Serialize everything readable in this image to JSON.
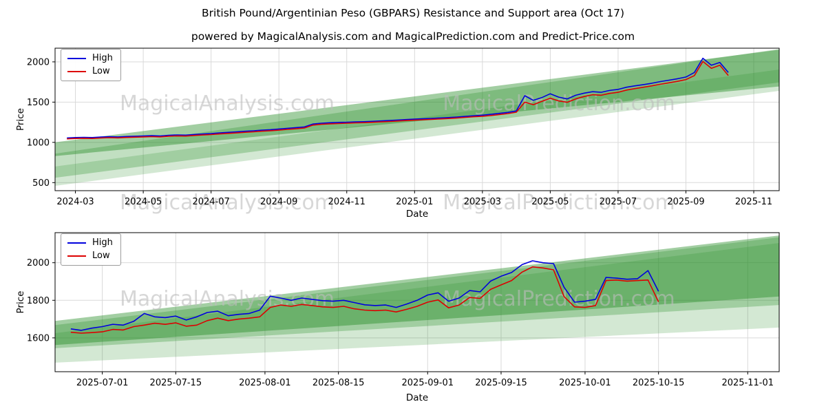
{
  "page": {
    "title": "British Pound/Argentinian Peso (GBPARS) Resistance and Support area (Oct 17)",
    "subtitle": "powered by MagicalAnalysis.com and MagicalPrediction.com and Predict-Price.com"
  },
  "colors": {
    "high": "#0000dd",
    "low": "#dd0000",
    "band": "#228b22",
    "grid": "#d9d9d9",
    "watermark": "#bdbdbd",
    "axis": "#000000",
    "plot_bg": "#ffffff"
  },
  "watermarks": {
    "left": "MagicalAnalysis.com",
    "right": "MagicalPrediction.com"
  },
  "legend": {
    "high": "High",
    "low": "Low"
  },
  "chart_data": [
    {
      "type": "line",
      "title": "",
      "xlabel": "Date",
      "ylabel": "Price",
      "xlim": [
        1.4,
        22.75
      ],
      "ylim": [
        400,
        2170
      ],
      "grid": true,
      "legend_position": "upper-left",
      "x_ticks": [
        {
          "x": 2,
          "label": "2024-03"
        },
        {
          "x": 4,
          "label": "2024-05"
        },
        {
          "x": 6,
          "label": "2024-07"
        },
        {
          "x": 8,
          "label": "2024-09"
        },
        {
          "x": 10,
          "label": "2024-11"
        },
        {
          "x": 12,
          "label": "2025-01"
        },
        {
          "x": 14,
          "label": "2025-03"
        },
        {
          "x": 16,
          "label": "2025-05"
        },
        {
          "x": 18,
          "label": "2025-07"
        },
        {
          "x": 20,
          "label": "2025-09"
        },
        {
          "x": 22,
          "label": "2025-11"
        }
      ],
      "y_ticks": [
        500,
        1000,
        1500,
        2000
      ],
      "x": [
        1.75,
        2,
        2.25,
        2.5,
        2.75,
        3,
        3.25,
        3.5,
        3.75,
        4,
        4.25,
        4.5,
        4.75,
        5,
        5.25,
        5.5,
        5.75,
        6,
        6.25,
        6.5,
        6.75,
        7,
        7.25,
        7.5,
        7.75,
        8,
        8.25,
        8.5,
        8.75,
        9,
        9.25,
        9.5,
        9.75,
        10,
        10.25,
        10.5,
        10.75,
        11,
        11.25,
        11.5,
        11.75,
        12,
        12.25,
        12.5,
        12.75,
        13,
        13.25,
        13.5,
        13.75,
        14,
        14.25,
        14.5,
        14.75,
        15,
        15.25,
        15.5,
        15.75,
        16,
        16.25,
        16.5,
        16.75,
        17,
        17.25,
        17.5,
        17.75,
        18,
        18.25,
        18.5,
        18.75,
        19,
        19.25,
        19.5,
        19.75,
        20,
        20.25,
        20.5,
        20.75,
        21,
        21.25
      ],
      "series": [
        {
          "name": "High",
          "color": "#0000dd",
          "values": [
            1055,
            1060,
            1063,
            1060,
            1066,
            1070,
            1068,
            1073,
            1076,
            1080,
            1083,
            1080,
            1088,
            1093,
            1090,
            1098,
            1104,
            1110,
            1118,
            1124,
            1130,
            1138,
            1144,
            1152,
            1158,
            1166,
            1175,
            1183,
            1192,
            1228,
            1238,
            1244,
            1248,
            1250,
            1254,
            1257,
            1261,
            1266,
            1271,
            1277,
            1283,
            1288,
            1293,
            1298,
            1303,
            1308,
            1315,
            1323,
            1330,
            1338,
            1348,
            1360,
            1372,
            1390,
            1580,
            1522,
            1556,
            1604,
            1562,
            1540,
            1585,
            1612,
            1630,
            1622,
            1645,
            1658,
            1685,
            1702,
            1718,
            1735,
            1755,
            1772,
            1790,
            1812,
            1868,
            2045,
            1958,
            1992,
            1868
          ]
        },
        {
          "name": "Low",
          "color": "#dd0000",
          "values": [
            1043,
            1048,
            1051,
            1048,
            1054,
            1058,
            1056,
            1061,
            1064,
            1068,
            1071,
            1068,
            1076,
            1081,
            1078,
            1086,
            1092,
            1097,
            1105,
            1111,
            1117,
            1125,
            1131,
            1139,
            1145,
            1152,
            1161,
            1169,
            1178,
            1214,
            1224,
            1230,
            1234,
            1238,
            1242,
            1245,
            1249,
            1254,
            1259,
            1265,
            1271,
            1276,
            1281,
            1286,
            1291,
            1296,
            1303,
            1311,
            1318,
            1324,
            1334,
            1346,
            1358,
            1375,
            1500,
            1468,
            1510,
            1548,
            1515,
            1498,
            1540,
            1570,
            1592,
            1585,
            1608,
            1622,
            1650,
            1668,
            1685,
            1702,
            1722,
            1740,
            1758,
            1780,
            1830,
            2005,
            1920,
            1958,
            1830
          ]
        }
      ],
      "bands": [
        {
          "bottom": [
            460,
            1640
          ],
          "top": [
            700,
            1905
          ],
          "alpha": 0.2
        },
        {
          "bottom": [
            560,
            1745
          ],
          "top": [
            860,
            2160
          ],
          "alpha": 0.28
        },
        {
          "bottom": [
            830,
            1695
          ],
          "top": [
            1000,
            2150
          ],
          "alpha": 0.42
        }
      ]
    },
    {
      "type": "line",
      "title": "",
      "xlabel": "Date",
      "ylabel": "Price",
      "xlim": [
        -2,
        136
      ],
      "ylim": [
        1420,
        2160
      ],
      "grid": true,
      "legend_position": "upper-left",
      "x_ticks": [
        {
          "x": 7,
          "label": "2025-07-01"
        },
        {
          "x": 21,
          "label": "2025-07-15"
        },
        {
          "x": 38,
          "label": "2025-08-01"
        },
        {
          "x": 52,
          "label": "2025-08-15"
        },
        {
          "x": 69,
          "label": "2025-09-01"
        },
        {
          "x": 83,
          "label": "2025-09-15"
        },
        {
          "x": 99,
          "label": "2025-10-01"
        },
        {
          "x": 113,
          "label": "2025-10-15"
        },
        {
          "x": 130,
          "label": "2025-11-01"
        }
      ],
      "y_ticks": [
        1600,
        1800,
        2000
      ],
      "x": [
        1,
        3,
        5,
        7,
        9,
        11,
        13,
        15,
        17,
        19,
        21,
        23,
        25,
        27,
        29,
        31,
        33,
        35,
        37,
        39,
        41,
        43,
        45,
        47,
        49,
        51,
        53,
        55,
        57,
        59,
        61,
        63,
        65,
        67,
        69,
        71,
        73,
        75,
        77,
        79,
        81,
        83,
        85,
        87,
        89,
        91,
        93,
        95,
        97,
        99,
        101,
        103,
        105,
        107,
        109,
        111,
        113
      ],
      "series": [
        {
          "name": "High",
          "color": "#0000dd",
          "values": [
            1648,
            1640,
            1652,
            1660,
            1672,
            1668,
            1688,
            1730,
            1712,
            1708,
            1716,
            1695,
            1712,
            1735,
            1742,
            1718,
            1725,
            1730,
            1748,
            1822,
            1812,
            1800,
            1812,
            1805,
            1798,
            1795,
            1800,
            1788,
            1776,
            1772,
            1775,
            1762,
            1780,
            1800,
            1828,
            1840,
            1795,
            1812,
            1852,
            1845,
            1902,
            1928,
            1948,
            1990,
            2010,
            2000,
            1995,
            1870,
            1790,
            1795,
            1805,
            1922,
            1918,
            1912,
            1915,
            1958,
            1848
          ]
        },
        {
          "name": "Low",
          "color": "#dd0000",
          "values": [
            1630,
            1625,
            1628,
            1632,
            1645,
            1642,
            1660,
            1668,
            1678,
            1672,
            1680,
            1662,
            1668,
            1692,
            1705,
            1692,
            1700,
            1705,
            1712,
            1762,
            1775,
            1768,
            1778,
            1772,
            1765,
            1762,
            1768,
            1755,
            1748,
            1745,
            1748,
            1738,
            1752,
            1768,
            1790,
            1802,
            1760,
            1775,
            1815,
            1810,
            1858,
            1882,
            1905,
            1950,
            1978,
            1972,
            1962,
            1820,
            1765,
            1762,
            1772,
            1905,
            1908,
            1902,
            1905,
            1908,
            1792
          ]
        }
      ],
      "bands": [
        {
          "bottom": [
            1468,
            1655
          ],
          "top": [
            1625,
            2105
          ],
          "alpha": 0.2
        },
        {
          "bottom": [
            1545,
            1775
          ],
          "top": [
            1668,
            2135
          ],
          "alpha": 0.28
        },
        {
          "bottom": [
            1562,
            1820
          ],
          "top": [
            1690,
            2145
          ],
          "alpha": 0.42
        }
      ]
    }
  ]
}
